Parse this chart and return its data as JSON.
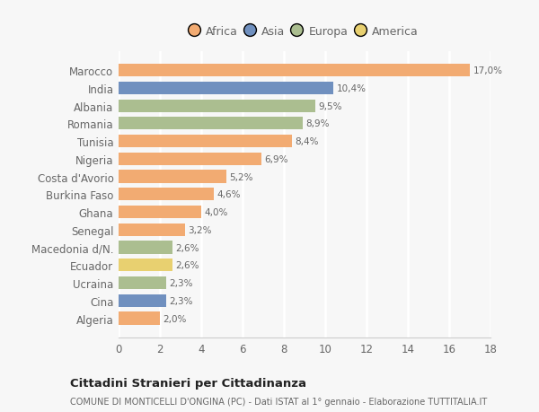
{
  "categories": [
    "Algeria",
    "Cina",
    "Ucraina",
    "Ecuador",
    "Macedonia d/N.",
    "Senegal",
    "Ghana",
    "Burkina Faso",
    "Costa d'Avorio",
    "Nigeria",
    "Tunisia",
    "Romania",
    "Albania",
    "India",
    "Marocco"
  ],
  "values": [
    2.0,
    2.3,
    2.3,
    2.6,
    2.6,
    3.2,
    4.0,
    4.6,
    5.2,
    6.9,
    8.4,
    8.9,
    9.5,
    10.4,
    17.0
  ],
  "labels": [
    "2,0%",
    "2,3%",
    "2,3%",
    "2,6%",
    "2,6%",
    "3,2%",
    "4,0%",
    "4,6%",
    "5,2%",
    "6,9%",
    "8,4%",
    "8,9%",
    "9,5%",
    "10,4%",
    "17,0%"
  ],
  "colors": [
    "#f2ab72",
    "#7090bf",
    "#abbe90",
    "#e8d070",
    "#abbe90",
    "#f2ab72",
    "#f2ab72",
    "#f2ab72",
    "#f2ab72",
    "#f2ab72",
    "#f2ab72",
    "#abbe90",
    "#abbe90",
    "#7090bf",
    "#f2ab72"
  ],
  "legend_labels": [
    "Africa",
    "Asia",
    "Europa",
    "America"
  ],
  "legend_colors": [
    "#f2ab72",
    "#7090bf",
    "#abbe90",
    "#e8d070"
  ],
  "title": "Cittadini Stranieri per Cittadinanza",
  "subtitle": "COMUNE DI MONTICELLI D'ONGINA (PC) - Dati ISTAT al 1° gennaio - Elaborazione TUTTITALIA.IT",
  "xlim": [
    0,
    18
  ],
  "xticks": [
    0,
    2,
    4,
    6,
    8,
    10,
    12,
    14,
    16,
    18
  ],
  "background_color": "#f7f7f7",
  "plot_bg_color": "#f7f7f7",
  "grid_color": "#ffffff",
  "bar_height": 0.72
}
